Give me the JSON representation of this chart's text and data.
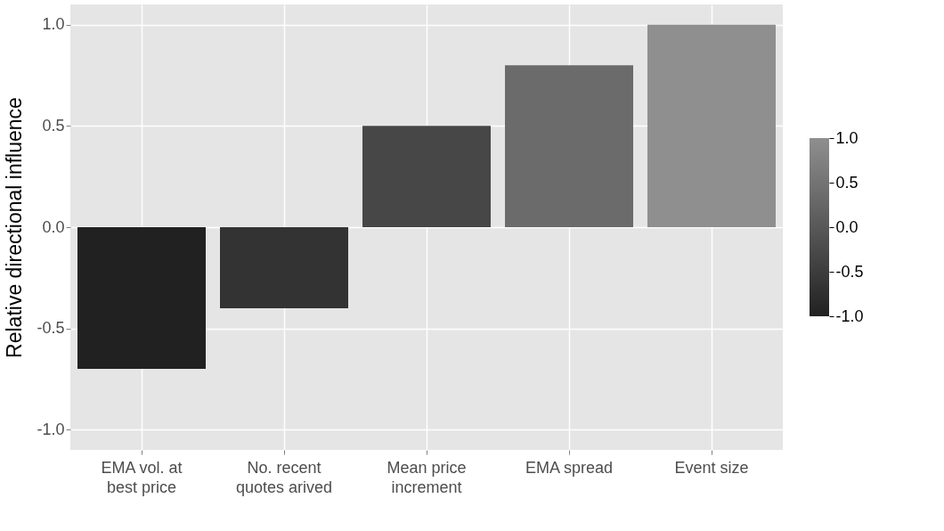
{
  "chart_data": {
    "type": "bar",
    "ylabel": "Relative directional influence",
    "categories": [
      "EMA vol. at\nbest price",
      "No. recent\nquotes arived",
      "Mean price\nincrement",
      "EMA spread",
      "Event size"
    ],
    "values": [
      -0.7,
      -0.4,
      0.5,
      0.8,
      1.0
    ],
    "colors": [
      "#212121",
      "#333333",
      "#474747",
      "#6b6b6b",
      "#8f8f8f"
    ],
    "ylim": [
      -1.1,
      1.1
    ],
    "yticks": [
      {
        "value": -1.0,
        "label": "-1.0"
      },
      {
        "value": -0.5,
        "label": "-0.5"
      },
      {
        "value": 0.0,
        "label": "0.0"
      },
      {
        "value": 0.5,
        "label": "0.5"
      },
      {
        "value": 1.0,
        "label": "1.0"
      }
    ],
    "clim": [
      -1,
      1
    ],
    "cticks": [
      {
        "value": 1.0,
        "label": "1.0"
      },
      {
        "value": 0.5,
        "label": "0.5"
      },
      {
        "value": 0.0,
        "label": "0.0"
      },
      {
        "value": -0.5,
        "label": "-0.5"
      },
      {
        "value": -1.0,
        "label": "-1.0"
      }
    ],
    "grid": true
  }
}
